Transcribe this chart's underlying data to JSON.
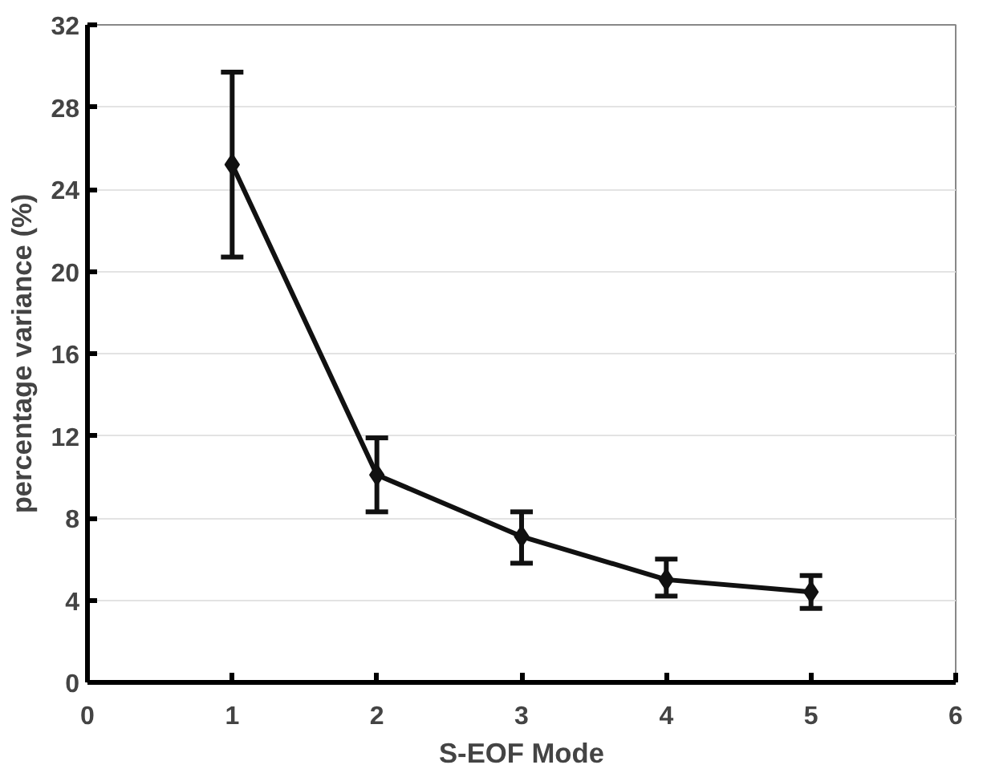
{
  "chart_data": {
    "type": "line",
    "xlabel": "S-EOF Mode",
    "ylabel": "percentage variance (%)",
    "x": [
      1,
      2,
      3,
      4,
      5
    ],
    "series": [
      {
        "color": "#111111",
        "values": [
          25.2,
          10.1,
          7.1,
          5.0,
          4.4
        ],
        "errors": [
          [
            20.7,
            29.7
          ],
          [
            8.3,
            11.9
          ],
          [
            5.8,
            8.3
          ],
          [
            4.2,
            6.0
          ],
          [
            3.6,
            5.2
          ]
        ]
      }
    ],
    "xlim": [
      0,
      6
    ],
    "xticks": [
      0,
      1,
      2,
      3,
      4,
      5,
      6
    ],
    "ylim": [
      0,
      32
    ],
    "yticks": [
      0,
      4,
      8,
      12,
      16,
      20,
      24,
      28,
      32
    ],
    "grid": "y",
    "marker": "diamond",
    "line_style": "solid"
  }
}
